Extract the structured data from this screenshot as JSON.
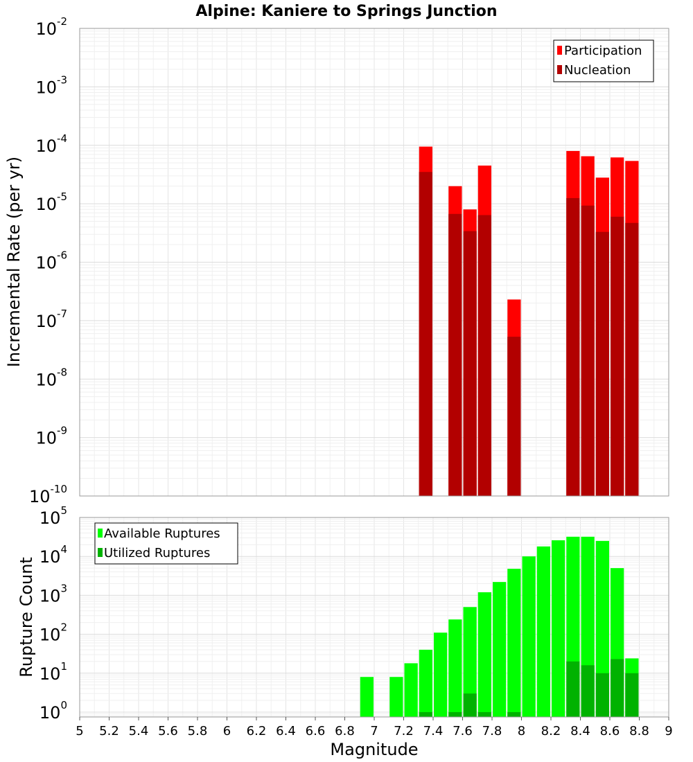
{
  "chart_data": [
    {
      "type": "bar",
      "title": "Alpine: Kaniere to Springs Junction",
      "xlabel": "Magnitude",
      "ylabel": "Incremental Rate (per yr)",
      "scale": "log",
      "xlim": [
        5,
        9
      ],
      "ylim": [
        1e-10,
        0.01
      ],
      "legend": "top-right",
      "grid": true,
      "series": [
        {
          "name": "Participation",
          "color": "#ff0000",
          "x": [
            7.35,
            7.55,
            7.65,
            7.75,
            7.95,
            8.35,
            8.45,
            8.55,
            8.65,
            8.75
          ],
          "values": [
            9.5e-05,
            2e-05,
            8e-06,
            4.5e-05,
            2.3e-07,
            8e-05,
            6.5e-05,
            2.8e-05,
            6.2e-05,
            5.4e-05
          ]
        },
        {
          "name": "Nucleation",
          "color": "#b20000",
          "x": [
            7.35,
            7.55,
            7.65,
            7.75,
            7.95,
            8.35,
            8.45,
            8.55,
            8.65,
            8.75
          ],
          "values": [
            3.5e-05,
            6.7e-06,
            3.4e-06,
            6.4e-06,
            5.3e-08,
            1.25e-05,
            9.3e-06,
            3.3e-06,
            6e-06,
            4.7e-06
          ]
        }
      ],
      "y_ticks": [
        {
          "base": "10",
          "exp": "-10"
        },
        {
          "base": "10",
          "exp": "-9"
        },
        {
          "base": "10",
          "exp": "-8"
        },
        {
          "base": "10",
          "exp": "-7"
        },
        {
          "base": "10",
          "exp": "-6"
        },
        {
          "base": "10",
          "exp": "-5"
        },
        {
          "base": "10",
          "exp": "-4"
        },
        {
          "base": "10",
          "exp": "-3"
        },
        {
          "base": "10",
          "exp": "-2"
        }
      ]
    },
    {
      "type": "bar",
      "xlabel": "Magnitude",
      "ylabel": "Rupture Count",
      "scale": "log",
      "xlim": [
        5,
        9
      ],
      "ylim": [
        0.75,
        100000
      ],
      "legend": "top-left",
      "grid": true,
      "series": [
        {
          "name": "Available Ruptures",
          "color": "#00ff00",
          "x": [
            6.95,
            7.15,
            7.25,
            7.35,
            7.45,
            7.55,
            7.65,
            7.75,
            7.85,
            7.95,
            8.05,
            8.15,
            8.25,
            8.35,
            8.45,
            8.55,
            8.65,
            8.75
          ],
          "values": [
            8,
            8,
            18,
            40,
            110,
            240,
            500,
            1200,
            2200,
            4800,
            10000,
            18000,
            26000,
            32000,
            32000,
            25000,
            5000,
            24
          ]
        },
        {
          "name": "Utilized Ruptures",
          "color": "#00b200",
          "x": [
            7.35,
            7.55,
            7.65,
            7.75,
            7.95,
            8.35,
            8.45,
            8.55,
            8.65,
            8.75
          ],
          "values": [
            1,
            1,
            3,
            1,
            1,
            20,
            16,
            10,
            23,
            10
          ]
        }
      ],
      "y_ticks": [
        {
          "base": "10",
          "exp": "0"
        },
        {
          "base": "10",
          "exp": "1"
        },
        {
          "base": "10",
          "exp": "2"
        },
        {
          "base": "10",
          "exp": "3"
        },
        {
          "base": "10",
          "exp": "4"
        },
        {
          "base": "10",
          "exp": "5"
        }
      ],
      "x_ticks": [
        "5",
        "5.2",
        "5.4",
        "5.6",
        "5.8",
        "6",
        "6.2",
        "6.4",
        "6.6",
        "6.8",
        "7",
        "7.2",
        "7.4",
        "7.6",
        "7.8",
        "8",
        "8.2",
        "8.4",
        "8.6",
        "8.8",
        "9"
      ]
    }
  ]
}
